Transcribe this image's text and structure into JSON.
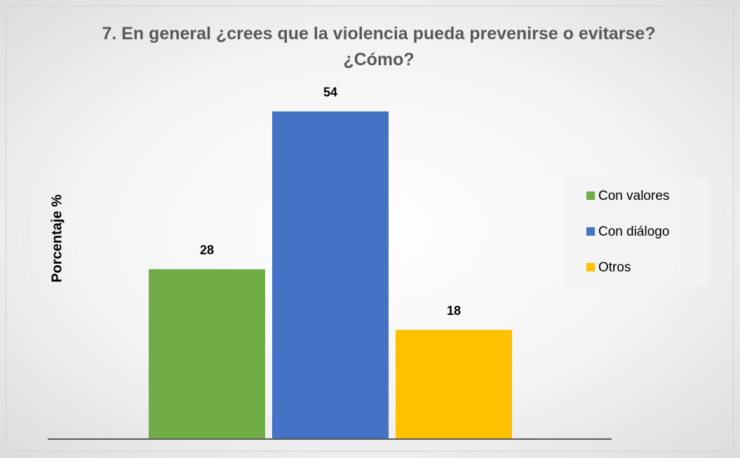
{
  "chart_data": {
    "type": "bar",
    "title": "7. En general ¿crees que la violencia pueda prevenirse o evitarse? ¿Cómo?",
    "y_label": "Porcentaje %",
    "categories": [
      null
    ],
    "series": [
      {
        "name": "Con valores",
        "color": "#70ad47",
        "values": [
          28
        ]
      },
      {
        "name": "Con diálogo",
        "color": "#4472c4",
        "values": [
          54
        ]
      },
      {
        "name": "Otros",
        "color": "#ffc000",
        "values": [
          18
        ]
      }
    ],
    "ylim": [
      0,
      60
    ],
    "legend": "right"
  }
}
